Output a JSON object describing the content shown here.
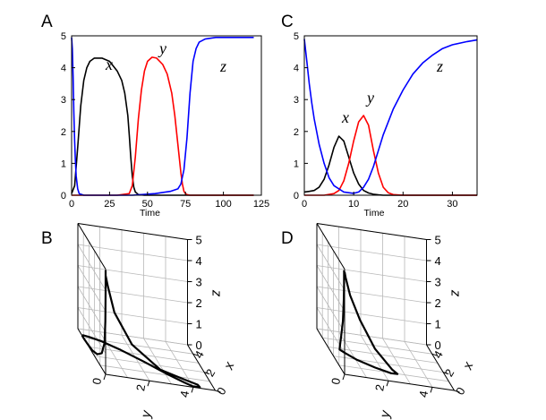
{
  "panels": {
    "A": {
      "letter": "A"
    },
    "B": {
      "letter": "B"
    },
    "C": {
      "letter": "C"
    },
    "D": {
      "letter": "D"
    }
  },
  "chart_data": [
    {
      "panel": "A",
      "type": "line",
      "xlabel": "Time",
      "xlim": [
        0,
        125
      ],
      "ylim": [
        0,
        5
      ],
      "xticks": [
        "0",
        "25",
        "50",
        "75",
        "100",
        "125"
      ],
      "yticks": [
        "0",
        "1",
        "2",
        "3",
        "4",
        "5"
      ],
      "grid": false,
      "series": [
        {
          "name": "x",
          "color": "#000000",
          "x": [
            0,
            2,
            4,
            6,
            8,
            10,
            12,
            15,
            20,
            25,
            30,
            33,
            35,
            37,
            38,
            39,
            40,
            41,
            42,
            44,
            48,
            60,
            120
          ],
          "y": [
            0.05,
            0.3,
            1.5,
            2.8,
            3.6,
            4.0,
            4.2,
            4.3,
            4.3,
            4.2,
            3.9,
            3.6,
            3.2,
            2.5,
            1.9,
            1.2,
            0.6,
            0.25,
            0.1,
            0.02,
            0.0,
            0.0,
            0.0
          ]
        },
        {
          "name": "y",
          "color": "#ff0000",
          "x": [
            0,
            30,
            38,
            40,
            42,
            44,
            46,
            48,
            50,
            53,
            56,
            60,
            63,
            66,
            68,
            70,
            72,
            73,
            74,
            75,
            76,
            78,
            80,
            120
          ],
          "y": [
            0.0,
            0.0,
            0.05,
            0.3,
            1.2,
            2.4,
            3.3,
            3.9,
            4.2,
            4.33,
            4.3,
            4.1,
            3.8,
            3.2,
            2.5,
            1.6,
            0.7,
            0.35,
            0.12,
            0.05,
            0.02,
            0.0,
            0.0,
            0.0
          ]
        },
        {
          "name": "z",
          "color": "#0000ff",
          "x": [
            0,
            0.5,
            1,
            1.5,
            2,
            2.5,
            3,
            4,
            5,
            8,
            20,
            40,
            55,
            65,
            70,
            72,
            74,
            76,
            78,
            80,
            82,
            84,
            88,
            95,
            100,
            110,
            120
          ],
          "y": [
            4.95,
            4.6,
            3.7,
            2.6,
            1.7,
            1.1,
            0.6,
            0.2,
            0.05,
            0.0,
            0.0,
            0.0,
            0.05,
            0.12,
            0.2,
            0.35,
            0.8,
            1.8,
            3.2,
            4.2,
            4.6,
            4.8,
            4.9,
            4.95,
            4.95,
            4.95,
            4.95
          ]
        }
      ]
    },
    {
      "panel": "C",
      "type": "line",
      "xlabel": "Time",
      "xlim": [
        0,
        35
      ],
      "ylim": [
        0,
        5
      ],
      "xticks": [
        "0",
        "10",
        "20",
        "30"
      ],
      "yticks": [
        "0",
        "1",
        "2",
        "3",
        "4",
        "5"
      ],
      "grid": false,
      "series": [
        {
          "name": "x",
          "color": "#000000",
          "x": [
            0,
            1,
            2,
            3,
            4,
            5,
            6,
            7,
            8,
            9,
            10,
            11,
            12,
            13,
            14,
            15,
            16,
            35
          ],
          "y": [
            0.1,
            0.12,
            0.15,
            0.25,
            0.5,
            0.95,
            1.5,
            1.85,
            1.7,
            1.2,
            0.7,
            0.35,
            0.15,
            0.07,
            0.03,
            0.01,
            0.0,
            0.0
          ]
        },
        {
          "name": "y",
          "color": "#ff0000",
          "x": [
            0,
            4,
            6,
            7,
            8,
            9,
            10,
            11,
            12,
            13,
            14,
            15,
            16,
            17,
            18,
            20,
            35
          ],
          "y": [
            0.0,
            0.0,
            0.05,
            0.15,
            0.45,
            1.0,
            1.7,
            2.3,
            2.5,
            2.2,
            1.4,
            0.7,
            0.25,
            0.08,
            0.02,
            0.0,
            0.0
          ]
        },
        {
          "name": "z",
          "color": "#0000ff",
          "x": [
            0,
            0.5,
            1,
            1.5,
            2,
            3,
            4,
            5,
            6,
            8,
            10,
            11,
            12,
            13,
            14,
            15,
            16,
            18,
            20,
            22,
            24,
            26,
            28,
            30,
            33,
            35
          ],
          "y": [
            4.9,
            4.2,
            3.5,
            2.9,
            2.4,
            1.6,
            1.0,
            0.55,
            0.3,
            0.1,
            0.06,
            0.1,
            0.25,
            0.5,
            0.9,
            1.4,
            1.9,
            2.7,
            3.3,
            3.8,
            4.15,
            4.4,
            4.6,
            4.72,
            4.82,
            4.87
          ]
        }
      ]
    },
    {
      "panel": "B",
      "type": "line",
      "projection": "3d",
      "xlabel": "x",
      "ylabel": "y",
      "zlabel": "z",
      "xlim": [
        0,
        5
      ],
      "ylim": [
        0,
        5
      ],
      "zlim": [
        0,
        5
      ],
      "xticks": [
        "0",
        "2",
        "4"
      ],
      "yticks": [
        "0",
        "2",
        "4"
      ],
      "zticks": [
        "0",
        "1",
        "2",
        "3",
        "4",
        "5"
      ],
      "grid": true,
      "series": [
        {
          "name": "trajectory",
          "color": "#000000",
          "x": [
            0,
            0,
            0.05,
            0.2,
            0.7,
            1.5,
            2.4,
            3.3,
            3.9,
            4.2,
            4.3,
            4.2,
            3.9,
            3.2,
            2.2,
            1.1,
            0.4,
            0.1,
            0.0,
            0.0,
            0.0,
            0.0,
            0.0,
            0.0,
            0.0,
            0.0,
            0.0,
            0.0
          ],
          "y": [
            0,
            0,
            0,
            0,
            0,
            0,
            0,
            0,
            0,
            0,
            0.05,
            0.3,
            0.8,
            1.5,
            2.3,
            3.1,
            3.7,
            4.0,
            4.3,
            4.2,
            3.6,
            2.5,
            1.2,
            0.4,
            0.1,
            0.0,
            0.0,
            0.0
          ],
          "z": [
            4.95,
            4.0,
            2.5,
            1.4,
            0.7,
            0.3,
            0.1,
            0.03,
            0.0,
            0.0,
            0.0,
            0.0,
            0.0,
            0.0,
            0.0,
            0.0,
            0.0,
            0.0,
            0.05,
            0.15,
            0.3,
            0.6,
            1.6,
            3.0,
            4.2,
            4.7,
            4.9,
            4.95
          ]
        }
      ]
    },
    {
      "panel": "D",
      "type": "line",
      "projection": "3d",
      "xlabel": "x",
      "ylabel": "y",
      "zlabel": "z",
      "xlim": [
        0,
        5
      ],
      "ylim": [
        0,
        5
      ],
      "zlim": [
        0,
        5
      ],
      "xticks": [
        "0",
        "2",
        "4"
      ],
      "yticks": [
        "0",
        "2",
        "4"
      ],
      "zticks": [
        "0",
        "1",
        "2",
        "3",
        "4",
        "5"
      ],
      "grid": true,
      "series": [
        {
          "name": "trajectory",
          "color": "#000000",
          "x": [
            0.1,
            0.1,
            0.15,
            0.3,
            0.6,
            1.0,
            1.5,
            1.85,
            1.7,
            1.2,
            0.7,
            0.35,
            0.15,
            0.05,
            0.0,
            0.0,
            0.0,
            0.0
          ],
          "y": [
            0,
            0,
            0,
            0,
            0,
            0.05,
            0.15,
            0.45,
            1.0,
            1.7,
            2.3,
            2.5,
            2.2,
            1.4,
            0.7,
            0.25,
            0.05,
            0.0
          ],
          "z": [
            4.9,
            4.2,
            3.5,
            2.4,
            1.6,
            1.0,
            0.55,
            0.3,
            0.1,
            0.06,
            0.1,
            0.25,
            0.5,
            1.4,
            2.7,
            3.8,
            4.6,
            4.87
          ]
        }
      ]
    }
  ]
}
